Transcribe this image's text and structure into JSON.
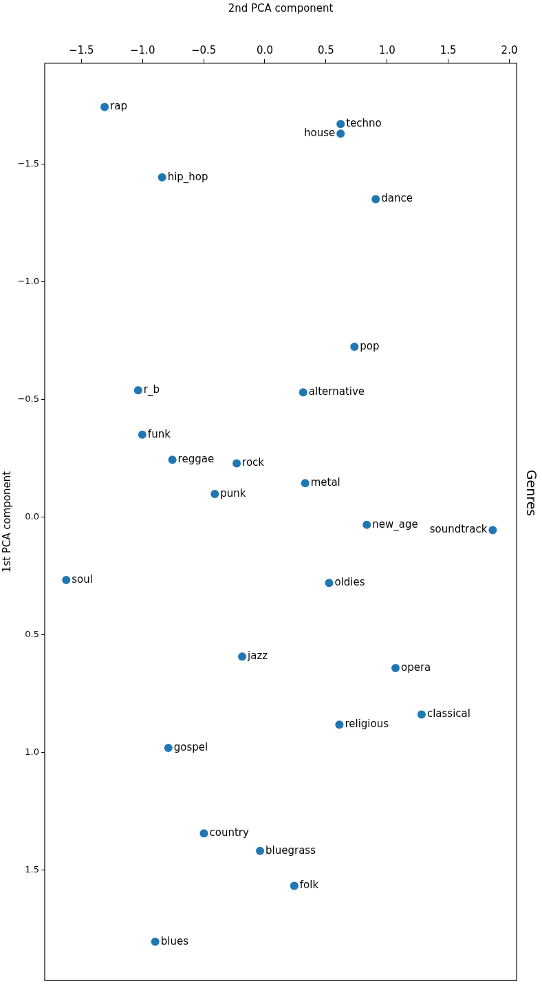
{
  "chart_data": {
    "type": "scatter",
    "title": "Genres",
    "xlabel": "2nd PCA component",
    "ylabel": "1st PCA component",
    "xlim": [
      -1.8,
      2.06
    ],
    "ylim": [
      1.97,
      -1.93
    ],
    "xticks": [
      {
        "value": -1.5,
        "label": "−1.5"
      },
      {
        "value": -1.0,
        "label": "−1.0"
      },
      {
        "value": -0.5,
        "label": "−0.5"
      },
      {
        "value": 0,
        "label": "0.0"
      },
      {
        "value": 0.5,
        "label": "0.5"
      },
      {
        "value": 1.0,
        "label": "1.0"
      },
      {
        "value": 1.5,
        "label": "1.5"
      },
      {
        "value": 2.0,
        "label": "2.0"
      }
    ],
    "yticks": [
      {
        "value": -1.5,
        "label": "−1.5"
      },
      {
        "value": -1.0,
        "label": "−1.0"
      },
      {
        "value": -0.5,
        "label": "−0.5"
      },
      {
        "value": 0,
        "label": "0.0"
      },
      {
        "value": 0.5,
        "label": "0.5"
      },
      {
        "value": 1.0,
        "label": "1.0"
      },
      {
        "value": 1.5,
        "label": "1.5"
      }
    ],
    "grid": false,
    "legend": false,
    "marker": "circle",
    "series": [
      {
        "color": "#1f77b4",
        "x": [
          -1.31,
          0.62,
          0.62,
          -0.84,
          0.907,
          0.733,
          0.314,
          -1.036,
          -1.002,
          -0.756,
          -0.23,
          0.33,
          -0.409,
          0.834,
          1.864,
          -1.624,
          0.526,
          -0.185,
          1.069,
          1.282,
          0.61,
          -0.789,
          -0.498,
          -0.039,
          0.241,
          -0.896
        ],
        "values": [
          -1.744,
          -1.672,
          -1.631,
          -1.445,
          -1.352,
          -0.725,
          -0.531,
          -0.54,
          -0.351,
          -0.244,
          -0.229,
          -0.145,
          -0.099,
          0.032,
          0.055,
          0.267,
          0.279,
          0.592,
          0.641,
          0.839,
          0.882,
          0.981,
          1.344,
          1.419,
          1.567,
          1.805
        ]
      }
    ],
    "annotations": [
      {
        "text": "rap",
        "x": -1.31,
        "y": -1.744
      },
      {
        "text": "techno",
        "x": 0.62,
        "y": -1.672
      },
      {
        "text": "house",
        "x": 0.62,
        "y": -1.631
      },
      {
        "text": "hip_hop",
        "x": -0.84,
        "y": -1.445
      },
      {
        "text": "dance",
        "x": 0.907,
        "y": -1.352
      },
      {
        "text": "pop",
        "x": 0.733,
        "y": -0.725
      },
      {
        "text": "alternative",
        "x": 0.314,
        "y": -0.531
      },
      {
        "text": "r_b",
        "x": -1.036,
        "y": -0.54
      },
      {
        "text": "funk",
        "x": -1.002,
        "y": -0.351
      },
      {
        "text": "reggae",
        "x": -0.756,
        "y": -0.244
      },
      {
        "text": "rock",
        "x": -0.23,
        "y": -0.229
      },
      {
        "text": "metal",
        "x": 0.33,
        "y": -0.145
      },
      {
        "text": "punk",
        "x": -0.409,
        "y": -0.099
      },
      {
        "text": "new_age",
        "x": 0.834,
        "y": 0.032
      },
      {
        "text": "soundtrack",
        "x": 1.864,
        "y": 0.055
      },
      {
        "text": "soul",
        "x": -1.624,
        "y": 0.267
      },
      {
        "text": "oldies",
        "x": 0.526,
        "y": 0.279
      },
      {
        "text": "jazz",
        "x": -0.185,
        "y": 0.592
      },
      {
        "text": "opera",
        "x": 1.069,
        "y": 0.641
      },
      {
        "text": "classical",
        "x": 1.282,
        "y": 0.839
      },
      {
        "text": "religious",
        "x": 0.61,
        "y": 0.882
      },
      {
        "text": "gospel",
        "x": -0.789,
        "y": 0.981
      },
      {
        "text": "country",
        "x": -0.498,
        "y": 1.344
      },
      {
        "text": "bluegrass",
        "x": -0.039,
        "y": 1.419
      },
      {
        "text": "folk",
        "x": 0.241,
        "y": 1.567
      },
      {
        "text": "blues",
        "x": -0.896,
        "y": 1.805
      }
    ]
  }
}
